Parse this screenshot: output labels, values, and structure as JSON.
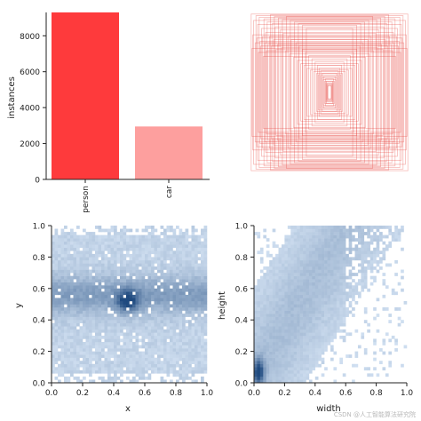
{
  "watermark": "CSDN @人工智能算法研究院",
  "colors": {
    "person": "#fe3a3c",
    "car": "#fd9f9e",
    "box_stroke": "#e53935",
    "heat_light": "#d8e6f6",
    "heat_dark": "#1f4a7f",
    "axis": "#222222"
  },
  "chart_data": [
    {
      "id": "class-counts",
      "type": "bar",
      "title": "",
      "xlabel": "",
      "ylabel": "instances",
      "categories": [
        "person",
        "car"
      ],
      "values": [
        9300,
        2950
      ],
      "ylim": [
        0,
        9300
      ],
      "yticks": [
        0,
        2000,
        4000,
        6000,
        8000
      ],
      "grid": false,
      "tick_labels_rotation": 90
    },
    {
      "id": "box-overlay",
      "type": "scatter",
      "title": "",
      "xlabel": "",
      "ylabel": "",
      "description_values": "centered bounding boxes of label shapes (width, height), normalized",
      "boxes_wh": [
        [
          0.98,
          0.98
        ],
        [
          0.95,
          0.9
        ],
        [
          0.92,
          0.96
        ],
        [
          0.9,
          0.85
        ],
        [
          0.88,
          0.94
        ],
        [
          0.85,
          0.8
        ],
        [
          0.82,
          0.92
        ],
        [
          0.8,
          0.75
        ],
        [
          0.78,
          0.88
        ],
        [
          0.75,
          0.7
        ],
        [
          0.72,
          0.86
        ],
        [
          0.7,
          0.66
        ],
        [
          0.68,
          0.82
        ],
        [
          0.65,
          0.6
        ],
        [
          0.62,
          0.78
        ],
        [
          0.6,
          0.56
        ],
        [
          0.58,
          0.74
        ],
        [
          0.55,
          0.52
        ],
        [
          0.52,
          0.7
        ],
        [
          0.5,
          0.48
        ],
        [
          0.48,
          0.66
        ],
        [
          0.45,
          0.44
        ],
        [
          0.42,
          0.62
        ],
        [
          0.4,
          0.4
        ],
        [
          0.38,
          0.58
        ],
        [
          0.36,
          0.36
        ],
        [
          0.34,
          0.54
        ],
        [
          0.32,
          0.34
        ],
        [
          0.3,
          0.5
        ],
        [
          0.28,
          0.3
        ],
        [
          0.26,
          0.46
        ],
        [
          0.24,
          0.28
        ],
        [
          0.22,
          0.42
        ],
        [
          0.2,
          0.26
        ],
        [
          0.18,
          0.38
        ],
        [
          0.16,
          0.24
        ],
        [
          0.15,
          0.34
        ],
        [
          0.14,
          0.22
        ],
        [
          0.13,
          0.3
        ],
        [
          0.12,
          0.2
        ],
        [
          0.11,
          0.27
        ],
        [
          0.1,
          0.18
        ],
        [
          0.09,
          0.24
        ],
        [
          0.08,
          0.16
        ],
        [
          0.07,
          0.2
        ],
        [
          0.06,
          0.14
        ],
        [
          0.05,
          0.17
        ],
        [
          0.045,
          0.12
        ],
        [
          0.04,
          0.14
        ],
        [
          0.035,
          0.1
        ],
        [
          0.03,
          0.11
        ],
        [
          0.025,
          0.08
        ],
        [
          0.02,
          0.09
        ],
        [
          0.97,
          0.55
        ],
        [
          0.93,
          0.62
        ],
        [
          0.89,
          0.5
        ],
        [
          0.86,
          0.58
        ],
        [
          0.83,
          0.45
        ],
        [
          0.79,
          0.52
        ],
        [
          0.74,
          0.97
        ],
        [
          0.69,
          0.95
        ],
        [
          0.64,
          0.93
        ],
        [
          0.59,
          0.91
        ],
        [
          0.54,
          0.95
        ],
        [
          0.49,
          0.9
        ],
        [
          0.44,
          0.88
        ],
        [
          0.39,
          0.86
        ],
        [
          0.34,
          0.84
        ],
        [
          0.29,
          0.8
        ],
        [
          0.96,
          0.72
        ],
        [
          0.91,
          0.68
        ],
        [
          0.87,
          0.64
        ],
        [
          0.84,
          0.7
        ],
        [
          0.81,
          0.62
        ],
        [
          0.77,
          0.6
        ],
        [
          0.73,
          0.58
        ],
        [
          0.67,
          0.54
        ]
      ]
    },
    {
      "id": "xy-hist",
      "type": "heatmap",
      "title": "",
      "xlabel": "x",
      "ylabel": "y",
      "xlim": [
        0,
        1
      ],
      "ylim": [
        0,
        1
      ],
      "xticks": [
        0.0,
        0.2,
        0.4,
        0.6,
        0.8,
        1.0
      ],
      "yticks": [
        0.0,
        0.2,
        0.4,
        0.6,
        0.8,
        1.0
      ],
      "xtick_labels": [
        "0.0",
        "0.2",
        "0.4",
        "0.6",
        "0.8",
        "1.0"
      ],
      "ytick_labels": [
        "0.0",
        "0.2",
        "0.4",
        "0.6",
        "0.8",
        "1.0"
      ],
      "bins": 50,
      "density_peak": [
        0.49,
        0.52
      ],
      "grid": false
    },
    {
      "id": "wh-hist",
      "type": "heatmap",
      "title": "",
      "xlabel": "width",
      "ylabel": "height",
      "xlim": [
        0,
        1
      ],
      "ylim": [
        0,
        1
      ],
      "xticks": [
        0.0,
        0.2,
        0.4,
        0.6,
        0.8,
        1.0
      ],
      "yticks": [
        0.0,
        0.2,
        0.4,
        0.6,
        0.8,
        1.0
      ],
      "xtick_labels": [
        "0.0",
        "0.2",
        "0.4",
        "0.6",
        "0.8",
        "1.0"
      ],
      "ytick_labels": [
        "0.0",
        "0.2",
        "0.4",
        "0.6",
        "0.8",
        "1.0"
      ],
      "bins": 50,
      "density_peak": [
        0.02,
        0.06
      ],
      "grid": false
    }
  ]
}
